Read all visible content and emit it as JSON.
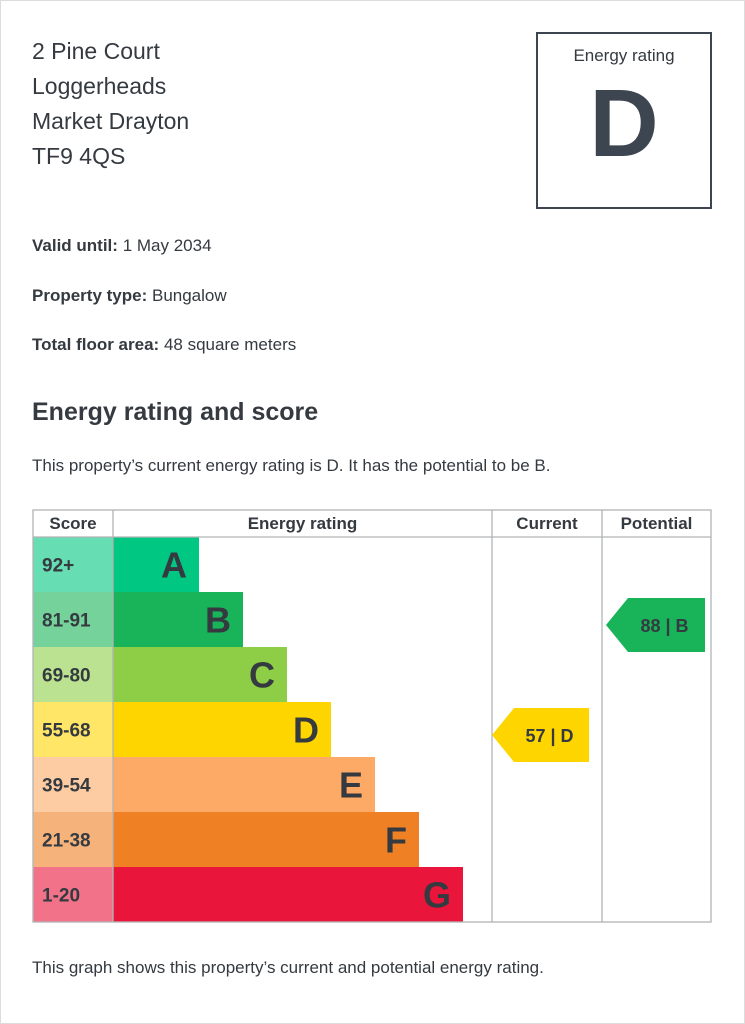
{
  "address": [
    "2 Pine Court",
    "Loggerheads",
    "Market Drayton",
    "TF9 4QS"
  ],
  "rating_box": {
    "label": "Energy rating",
    "letter": "D"
  },
  "facts": [
    {
      "label": "Valid until:",
      "value": "1 May 2034"
    },
    {
      "label": "Property type:",
      "value": "Bungalow"
    },
    {
      "label": "Total floor area:",
      "value": "48 square meters"
    }
  ],
  "section_title": "Energy rating and score",
  "summary": "This property’s current energy rating is D. It has the potential to be B.",
  "footer": "This graph shows this property’s current and potential energy rating.",
  "chart_data": {
    "type": "table",
    "columns": [
      "Score",
      "Energy rating",
      "Current",
      "Potential"
    ],
    "bands": [
      {
        "score": "92+",
        "letter": "A",
        "color": "#00c781",
        "light": "#66ddb3"
      },
      {
        "score": "81-91",
        "letter": "B",
        "color": "#19b459",
        "light": "#75d29b"
      },
      {
        "score": "69-80",
        "letter": "C",
        "color": "#8dce46",
        "light": "#bbe290"
      },
      {
        "score": "55-68",
        "letter": "D",
        "color": "#ffd500",
        "light": "#ffe666"
      },
      {
        "score": "39-54",
        "letter": "E",
        "color": "#fcaa65",
        "light": "#fdcca3"
      },
      {
        "score": "21-38",
        "letter": "F",
        "color": "#ef8023",
        "light": "#f5b37b"
      },
      {
        "score": "1-20",
        "letter": "G",
        "color": "#e9153b",
        "light": "#f27389"
      }
    ],
    "current": {
      "value": 57,
      "letter": "D",
      "label": "57 | D",
      "color": "#ffd500"
    },
    "potential": {
      "value": 88,
      "letter": "B",
      "label": "88 | B",
      "color": "#19b459"
    }
  }
}
